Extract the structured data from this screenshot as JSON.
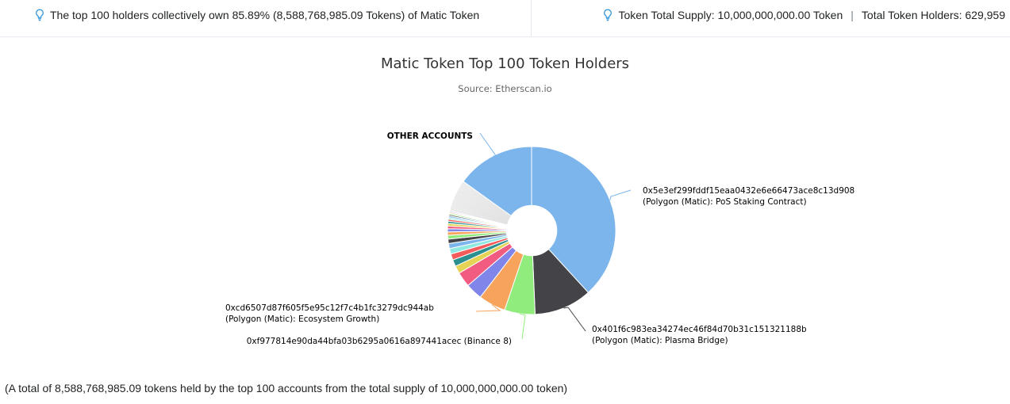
{
  "summary": {
    "left": "The top 100 holders collectively own 85.89% (8,588,768,985.09 Tokens) of Matic Token",
    "supply": "Token Total Supply: 10,000,000,000.00 Token",
    "separator": "|",
    "holders": "Total Token Holders: 629,959"
  },
  "icons": {
    "info": "lightbulb-icon"
  },
  "colors": {
    "accent": "#3498db"
  },
  "footnote": "(A total of 8,588,768,985.09 tokens held by the top 100 accounts from the total supply of 10,000,000,000.00 token)",
  "chart_data": {
    "type": "pie",
    "title": "Matic Token Top 100 Token Holders",
    "subtitle": "Source: Etherscan.io",
    "slices": [
      {
        "label": "0x5e3ef299fddf15eaa0432e6e66473ace8c13d908",
        "sublabel": "(Polygon (Matic): PoS Staking Contract)",
        "value": 35.8,
        "color": "#7cb5ec"
      },
      {
        "label": "0x401f6c983ea34274ec46f84d70b31c151321188b",
        "sublabel": "(Polygon (Matic): Plasma Bridge)",
        "value": 10.4,
        "color": "#434348"
      },
      {
        "label": "0xf977814e90da44bfa03b6295a0616a897441acec (Binance 8)",
        "sublabel": "",
        "value": 5.5,
        "color": "#90ed7d"
      },
      {
        "label": "0xcd6507d87f605f5e95c12f7c4b1fc3279dc944ab",
        "sublabel": "(Polygon (Matic): Ecosystem Growth)",
        "value": 4.9,
        "color": "#f7a35c"
      },
      {
        "label": "",
        "sublabel": "",
        "value": 3.0,
        "color": "#8085e9"
      },
      {
        "label": "",
        "sublabel": "",
        "value": 2.7,
        "color": "#f15c80"
      },
      {
        "label": "",
        "sublabel": "",
        "value": 1.4,
        "color": "#e4d354"
      },
      {
        "label": "",
        "sublabel": "",
        "value": 1.2,
        "color": "#2b908f"
      },
      {
        "label": "",
        "sublabel": "",
        "value": 1.1,
        "color": "#f45b5b"
      },
      {
        "label": "",
        "sublabel": "",
        "value": 1.0,
        "color": "#91e8e1"
      },
      {
        "label": "",
        "sublabel": "",
        "value": 0.9,
        "color": "#7cb5ec"
      },
      {
        "label": "",
        "sublabel": "",
        "value": 0.8,
        "color": "#434348"
      },
      {
        "label": "",
        "sublabel": "",
        "value": 0.7,
        "color": "#90ed7d"
      },
      {
        "label": "",
        "sublabel": "",
        "value": 0.6,
        "color": "#f7a35c"
      },
      {
        "label": "",
        "sublabel": "",
        "value": 0.55,
        "color": "#8085e9"
      },
      {
        "label": "",
        "sublabel": "",
        "value": 0.5,
        "color": "#f15c80"
      },
      {
        "label": "",
        "sublabel": "",
        "value": 0.45,
        "color": "#e4d354"
      },
      {
        "label": "",
        "sublabel": "",
        "value": 0.4,
        "color": "#2b908f"
      },
      {
        "label": "",
        "sublabel": "",
        "value": 0.35,
        "color": "#f45b5b"
      },
      {
        "label": "",
        "sublabel": "",
        "value": 0.3,
        "color": "#91e8e1"
      },
      {
        "label": "",
        "sublabel": "",
        "value": 0.3,
        "color": "#7cb5ec"
      },
      {
        "label": "",
        "sublabel": "",
        "value": 0.25,
        "color": "#434348"
      },
      {
        "label": "",
        "sublabel": "",
        "value": 0.25,
        "color": "#90ed7d"
      },
      {
        "label": "",
        "sublabel": "",
        "value": 0.2,
        "color": "#f7a35c"
      },
      {
        "label": "",
        "sublabel": "",
        "value": 0.2,
        "color": "#8085e9"
      },
      {
        "label": "",
        "sublabel": "",
        "value": 5.79,
        "color": "#f4f4f4",
        "note": "remaining top-100 accounts (very thin slices)"
      },
      {
        "label": "OTHER ACCOUNTS",
        "sublabel": "",
        "value": 14.11,
        "color": "#7cb5ec"
      }
    ],
    "inner_radius_ratio": 0.3,
    "legend": "none (labels with connector lines)"
  }
}
